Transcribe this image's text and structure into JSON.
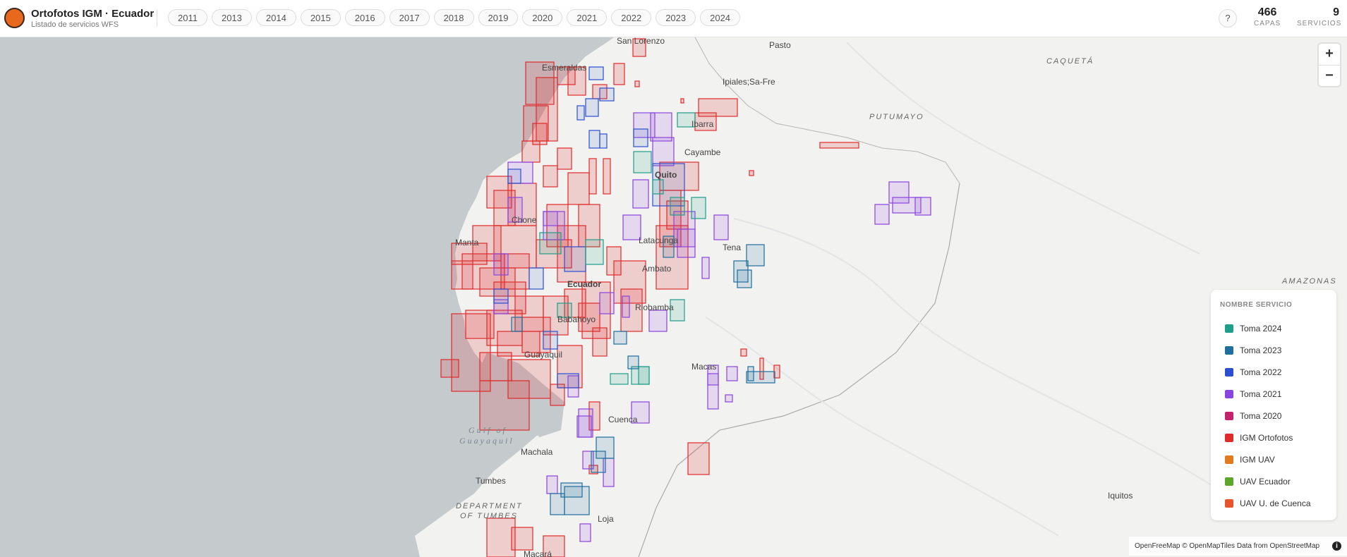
{
  "header": {
    "title": "Ortofotos IGM · Ecuador",
    "subtitle": "Listado de servicios WFS",
    "years": [
      "2011",
      "2013",
      "2014",
      "2015",
      "2016",
      "2017",
      "2018",
      "2019",
      "2020",
      "2021",
      "2022",
      "2023",
      "2024"
    ],
    "help_label": "?",
    "stats": [
      {
        "value": "466",
        "label": "CAPAS"
      },
      {
        "value": "9",
        "label": "SERVICIOS"
      }
    ]
  },
  "zoom": {
    "in_label": "+",
    "out_label": "−"
  },
  "legend": {
    "title": "NOMBRE SERVICIO",
    "items": [
      {
        "label": "Toma 2024",
        "color": "#1f9e89"
      },
      {
        "label": "Toma 2023",
        "color": "#1f6e9e"
      },
      {
        "label": "Toma 2022",
        "color": "#2b4fd1"
      },
      {
        "label": "Toma 2021",
        "color": "#8a44e0"
      },
      {
        "label": "Toma 2020",
        "color": "#c4246b"
      },
      {
        "label": "IGM Ortofotos",
        "color": "#e02b2b"
      },
      {
        "label": "IGM UAV",
        "color": "#e07c1c"
      },
      {
        "label": "UAV Ecuador",
        "color": "#5aa52a"
      },
      {
        "label": "UAV U. de Cuenca",
        "color": "#e8552a"
      }
    ]
  },
  "map_labels": {
    "places": [
      "San Lorenzo",
      "Pasto",
      "Esmeraldas",
      "Ipiales;Sa-Fre",
      "Ibarra",
      "Cayambe",
      "Quito",
      "Chone",
      "Manta",
      "Latacunga",
      "Tena",
      "Ambato",
      "Ecuador",
      "Riobamba",
      "Babahoyo",
      "Guayaquil",
      "Macas",
      "Cuenca",
      "Machala",
      "Tumbes",
      "Loja",
      "Iquitos",
      "Macará"
    ],
    "regions": [
      "CAQUETÁ",
      "PUTUMAYO",
      "AMAZONAS",
      "DEPARTMENT",
      "OF TUMBES"
    ],
    "sea": [
      "Gulf of",
      "Guayaquil"
    ]
  },
  "attribution": {
    "text": "OpenFreeMap © OpenMapTiles Data from OpenStreetMap",
    "info_label": "i"
  }
}
